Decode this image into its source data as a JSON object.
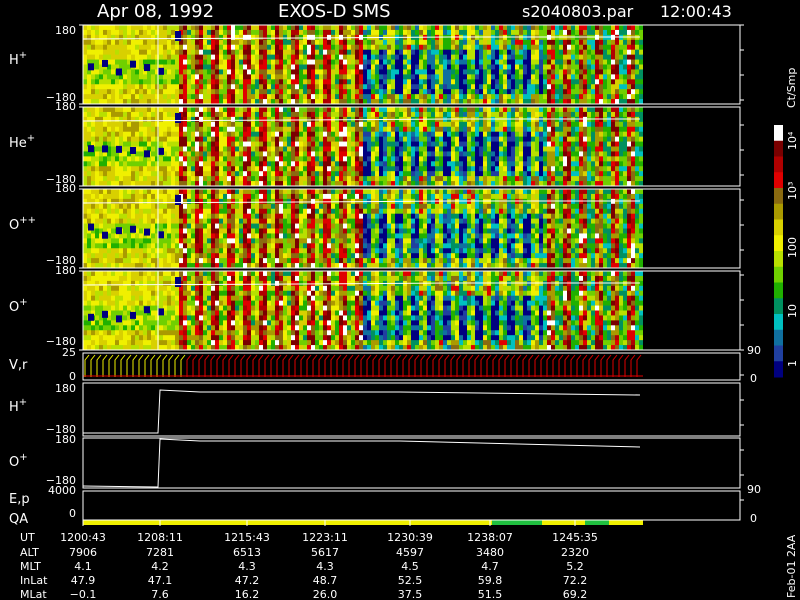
{
  "header": {
    "date": "Apr 08, 1992",
    "mission": "EXOS-D SMS",
    "file": "s2040803.par",
    "time": "12:00:43"
  },
  "colorbar": {
    "label": "Ct/Smp",
    "ticks": [
      "10⁴",
      "10³",
      "100",
      "10",
      "1"
    ],
    "colors": [
      "#ffffff",
      "#7a0000",
      "#b00000",
      "#e00000",
      "#8a6a10",
      "#aa9a00",
      "#d8d000",
      "#f0f000",
      "#b8e000",
      "#70d000",
      "#20b000",
      "#009060",
      "#00c0c0",
      "#1070a0",
      "#2040a0",
      "#000080"
    ]
  },
  "panels": [
    {
      "species": "H",
      "charge": "+",
      "ymax": "180",
      "ymin": "−180"
    },
    {
      "species": "He",
      "charge": "+",
      "ymax": "180",
      "ymin": "−180"
    },
    {
      "species": "O",
      "charge": "++",
      "ymax": "180",
      "ymin": "−180"
    },
    {
      "species": "O",
      "charge": "+",
      "ymax": "180",
      "ymin": "−180"
    }
  ],
  "vr_panel": {
    "label": "V,r",
    "ymax": "25",
    "ymin": "0",
    "right_top": "90",
    "right_bottom": "0"
  },
  "line_panels": [
    {
      "species": "H",
      "charge": "+",
      "ymax": "180",
      "ymin": "−180"
    },
    {
      "species": "O",
      "charge": "+",
      "ymax": "180",
      "ymin": "−180"
    }
  ],
  "ep_panel": {
    "label": "E,p",
    "value": "4000",
    "ymin": "0",
    "right_top": "90",
    "right_bottom": "0"
  },
  "qa_panel": {
    "label": "QA"
  },
  "footer": {
    "row_labels": [
      "UT",
      "ALT",
      "MLT",
      "InLat",
      "MLat"
    ],
    "columns": [
      {
        "UT": "1200:43",
        "ALT": "7906",
        "MLT": "4.1",
        "InLat": "47.9",
        "MLat": "−0.1"
      },
      {
        "UT": "1208:11",
        "ALT": "7281",
        "MLT": "4.2",
        "InLat": "47.1",
        "MLat": "7.6"
      },
      {
        "UT": "1215:43",
        "ALT": "6513",
        "MLT": "4.3",
        "InLat": "47.2",
        "MLat": "16.2"
      },
      {
        "UT": "1223:11",
        "ALT": "5617",
        "MLT": "4.3",
        "InLat": "48.7",
        "MLat": "26.0"
      },
      {
        "UT": "1230:39",
        "ALT": "4597",
        "MLT": "4.5",
        "InLat": "52.5",
        "MLat": "37.5"
      },
      {
        "UT": "1238:07",
        "ALT": "3480",
        "MLT": "4.7",
        "InLat": "59.8",
        "MLat": "51.5"
      },
      {
        "UT": "1245:35",
        "ALT": "2320",
        "MLT": "5.2",
        "InLat": "72.2",
        "MLat": "69.2"
      }
    ],
    "version": "Feb-01 2AA"
  },
  "chart_data": {
    "type": "heatmap",
    "title": "Apr 08, 1992    EXOS-D SMS",
    "x_ticks": [
      "1200:43",
      "1208:11",
      "1215:43",
      "1223:11",
      "1230:39",
      "1238:07",
      "1245:35"
    ],
    "series": [
      {
        "name": "H+",
        "yrange": [
          -180,
          180
        ]
      },
      {
        "name": "He+",
        "yrange": [
          -180,
          180
        ]
      },
      {
        "name": "O++",
        "yrange": [
          -180,
          180
        ]
      },
      {
        "name": "O+",
        "yrange": [
          -180,
          180
        ]
      }
    ],
    "colorbar_label": "Ct/Smp",
    "colorbar_range": [
      1,
      10000
    ],
    "colorbar_scale": "log"
  }
}
